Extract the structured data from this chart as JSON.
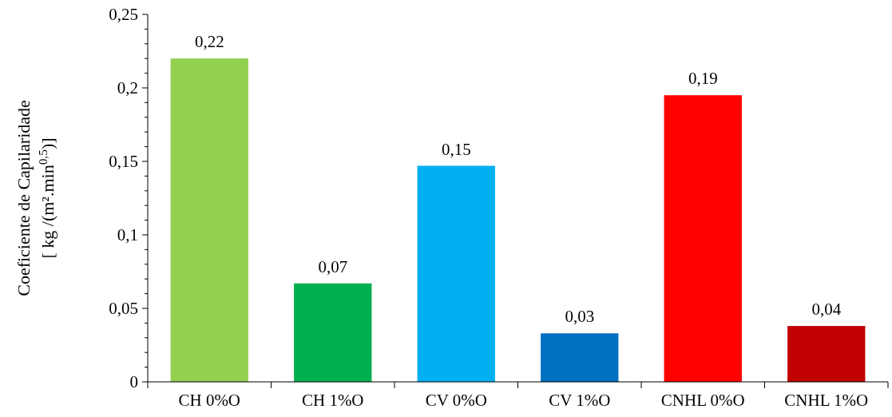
{
  "chart_data": {
    "type": "bar",
    "ylabel": "Coeficiente de Capilaridade\n[ kg /(m².min$^{0,5}$)]",
    "categories": [
      "CH 0%O",
      "CH 1%O",
      "CV 0%O",
      "CV 1%O",
      "CNHL 0%O",
      "CNHL 1%O"
    ],
    "values": [
      0.22,
      0.067,
      0.147,
      0.033,
      0.195,
      0.038
    ],
    "value_labels": [
      "0,22",
      "0,07",
      "0,15",
      "0,03",
      "0,19",
      "0,04"
    ],
    "colors": [
      "#92d050",
      "#00b050",
      "#00b0f0",
      "#0070c0",
      "#ff0000",
      "#c00000"
    ],
    "ylim": [
      0,
      0.25
    ],
    "yticks": [
      {
        "value": 0,
        "label": "0"
      },
      {
        "value": 0.01,
        "label": null
      },
      {
        "value": 0.02,
        "label": null
      },
      {
        "value": 0.03,
        "label": null
      },
      {
        "value": 0.04,
        "label": null
      },
      {
        "value": 0.05,
        "label": "0,05"
      },
      {
        "value": 0.06,
        "label": null
      },
      {
        "value": 0.07,
        "label": null
      },
      {
        "value": 0.08,
        "label": null
      },
      {
        "value": 0.09,
        "label": null
      },
      {
        "value": 0.1,
        "label": "0,1"
      },
      {
        "value": 0.11,
        "label": null
      },
      {
        "value": 0.12,
        "label": null
      },
      {
        "value": 0.13,
        "label": null
      },
      {
        "value": 0.14,
        "label": null
      },
      {
        "value": 0.15,
        "label": "0,15"
      },
      {
        "value": 0.16,
        "label": null
      },
      {
        "value": 0.17,
        "label": null
      },
      {
        "value": 0.18,
        "label": null
      },
      {
        "value": 0.19,
        "label": null
      },
      {
        "value": 0.2,
        "label": "0,2"
      },
      {
        "value": 0.21,
        "label": null
      },
      {
        "value": 0.22,
        "label": null
      },
      {
        "value": 0.23,
        "label": null
      },
      {
        "value": 0.24,
        "label": null
      },
      {
        "value": 0.25,
        "label": "0,25"
      }
    ],
    "grid": false
  }
}
